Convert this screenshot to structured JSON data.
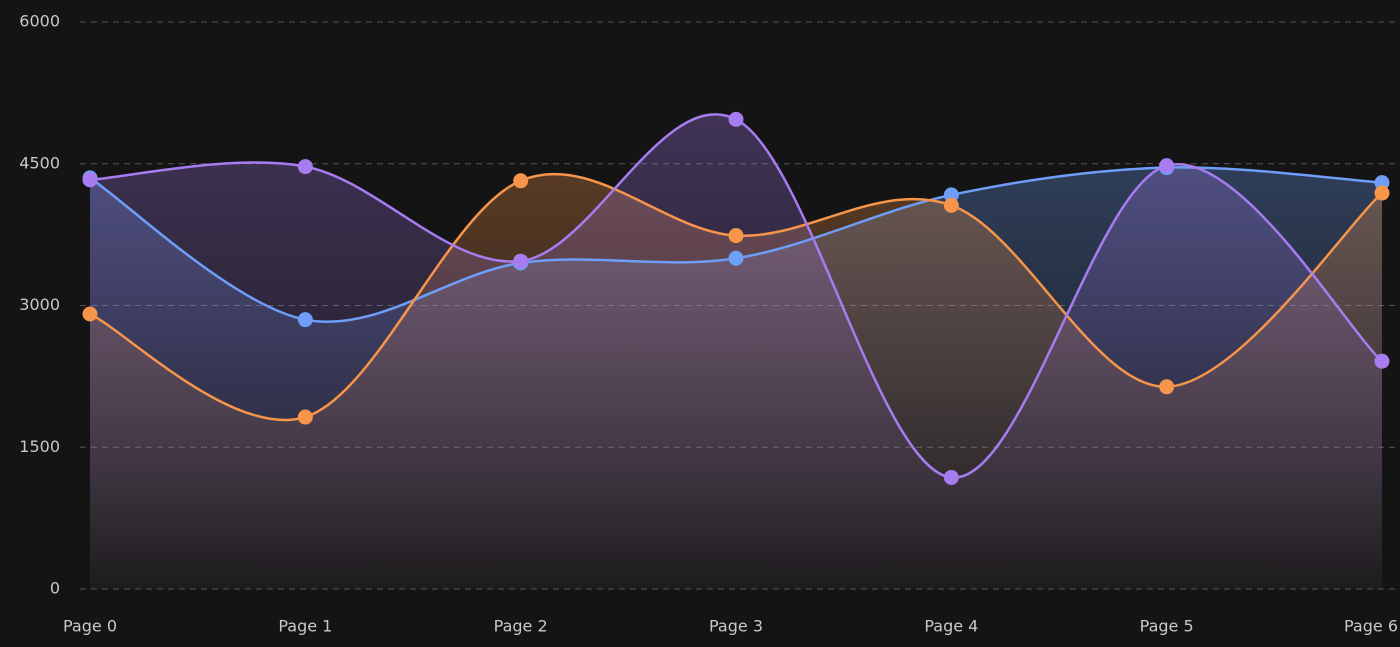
{
  "chart_data": {
    "type": "area",
    "categories": [
      "Page 0",
      "Page 1",
      "Page 2",
      "Page 3",
      "Page 4",
      "Page 5",
      "Page 6"
    ],
    "series": [
      {
        "color": "#6e9ef7",
        "values": [
          4350,
          2850,
          3450,
          3500,
          4170,
          4460,
          4300
        ]
      },
      {
        "color": "#f7954a",
        "values": [
          2910,
          1820,
          4320,
          3740,
          4060,
          2140,
          4190
        ]
      },
      {
        "color": "#a77cf0",
        "values": [
          4330,
          4470,
          3470,
          4970,
          1180,
          4480,
          2410
        ]
      }
    ],
    "ylim": [
      0,
      6000
    ],
    "yticks": [
      0,
      1500,
      3000,
      4500,
      6000
    ],
    "grid": true
  }
}
